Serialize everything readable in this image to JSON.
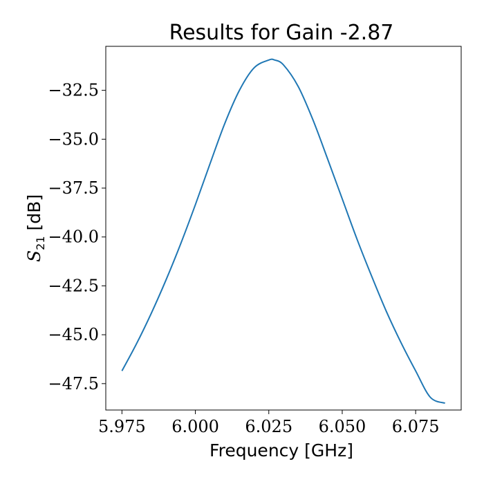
{
  "chart_data": {
    "type": "line",
    "title": "Results for Gain -2.87",
    "xlabel": "Frequency [GHz]",
    "ylabel": {
      "symbol": "S",
      "subscript": "21",
      "unit": " [dB]"
    },
    "xlim": [
      5.9695,
      6.0905
    ],
    "ylim": [
      -48.85,
      -30.25
    ],
    "xticks": [
      5.975,
      6.0,
      6.025,
      6.05,
      6.075
    ],
    "xtick_labels": [
      "5.975",
      "6.000",
      "6.025",
      "6.050",
      "6.075"
    ],
    "yticks": [
      -32.5,
      -35.0,
      -37.5,
      -40.0,
      -42.5,
      -45.0,
      -47.5
    ],
    "ytick_labels": [
      "−32.5",
      "−35.0",
      "−37.5",
      "−40.0",
      "−42.5",
      "−45.0",
      "−47.5"
    ],
    "grid": false,
    "series": [
      {
        "color": "#1f77b4",
        "x": [
          5.975,
          5.98,
          5.985,
          5.99,
          5.995,
          6.0,
          6.005,
          6.01,
          6.015,
          6.02,
          6.025,
          6.027,
          6.03,
          6.035,
          6.04,
          6.045,
          6.05,
          6.055,
          6.06,
          6.065,
          6.07,
          6.075,
          6.08,
          6.085
        ],
        "y": [
          -46.85,
          -45.45,
          -43.9,
          -42.2,
          -40.35,
          -38.35,
          -36.25,
          -34.2,
          -32.5,
          -31.35,
          -30.95,
          -30.95,
          -31.2,
          -32.3,
          -34.0,
          -36.0,
          -38.05,
          -40.1,
          -42.0,
          -43.8,
          -45.4,
          -46.85,
          -48.2,
          -48.5
        ]
      }
    ]
  }
}
